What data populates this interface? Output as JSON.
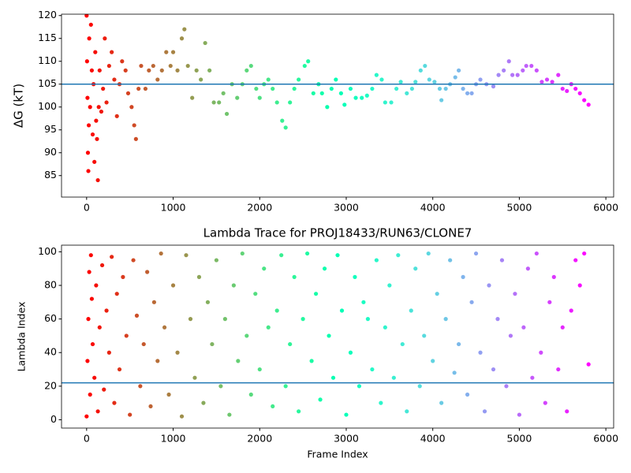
{
  "chart_data": [
    {
      "type": "scatter",
      "ylabel": "ΔG (kT)",
      "xlim": [
        -290,
        6090
      ],
      "ylim": [
        80.3,
        120.3
      ],
      "xticks": [
        0,
        1000,
        2000,
        3000,
        4000,
        5000,
        6000
      ],
      "yticks": [
        85,
        90,
        95,
        100,
        105,
        110,
        115,
        120
      ],
      "colormap": "rainbow",
      "colormap_reversed": true,
      "hline": 105,
      "hline_color": "#1f77b4",
      "x": [
        0,
        5,
        10,
        15,
        20,
        25,
        30,
        40,
        50,
        60,
        70,
        80,
        90,
        100,
        110,
        120,
        130,
        140,
        150,
        170,
        190,
        210,
        230,
        260,
        290,
        320,
        350,
        380,
        410,
        450,
        480,
        520,
        550,
        570,
        600,
        630,
        680,
        720,
        770,
        820,
        870,
        920,
        970,
        1000,
        1050,
        1100,
        1130,
        1170,
        1220,
        1270,
        1320,
        1370,
        1420,
        1470,
        1530,
        1580,
        1620,
        1680,
        1740,
        1800,
        1850,
        1900,
        1960,
        2000,
        2050,
        2100,
        2150,
        2200,
        2260,
        2300,
        2350,
        2400,
        2450,
        2520,
        2560,
        2620,
        2680,
        2720,
        2780,
        2830,
        2880,
        2940,
        2980,
        3050,
        3110,
        3180,
        3240,
        3300,
        3350,
        3410,
        3450,
        3520,
        3580,
        3630,
        3700,
        3760,
        3800,
        3860,
        3910,
        3960,
        4020,
        4080,
        4100,
        4150,
        4200,
        4260,
        4300,
        4350,
        4400,
        4450,
        4500,
        4550,
        4620,
        4700,
        4760,
        4820,
        4880,
        4920,
        4980,
        5040,
        5080,
        5140,
        5200,
        5260,
        5320,
        5380,
        5450,
        5500,
        5550,
        5600,
        5650,
        5700,
        5750,
        5800
      ],
      "values": [
        120,
        110,
        102,
        90,
        86,
        96,
        115,
        100,
        118,
        108,
        94,
        105,
        88,
        112,
        97,
        93,
        84,
        100,
        108,
        99,
        104,
        115,
        101,
        109,
        112,
        106,
        98,
        105,
        110,
        108,
        103,
        100,
        96,
        93,
        104,
        109,
        104,
        108,
        109,
        106,
        108,
        112,
        109,
        112,
        108,
        115,
        117,
        109,
        102,
        108,
        106,
        114,
        108,
        101,
        101,
        103,
        98.5,
        105,
        102,
        105,
        108,
        109,
        104,
        102,
        105,
        106,
        104,
        101,
        97,
        95.5,
        101,
        104,
        106,
        109,
        110,
        103,
        105,
        103,
        100,
        104,
        106,
        103,
        100.5,
        104,
        102,
        102,
        102.5,
        104,
        107,
        106,
        101,
        101,
        104,
        105.5,
        103,
        104,
        105.5,
        108,
        109,
        106,
        105.5,
        104,
        101.5,
        104,
        105,
        106.5,
        108,
        104,
        103,
        103,
        105,
        106,
        105,
        104.5,
        107,
        108,
        110,
        107,
        107,
        108,
        109,
        109,
        108,
        105.5,
        106,
        105.5,
        107,
        104,
        103.5,
        105,
        104,
        103,
        101.5,
        100.5
      ]
    },
    {
      "type": "scatter",
      "title": "Lambda Trace for PROJ18433/RUN63/CLONE7",
      "xlabel": "Frame Index",
      "ylabel": "Lambda Index",
      "xlim": [
        -290,
        6090
      ],
      "ylim": [
        -4.95,
        103.95
      ],
      "xticks": [
        0,
        1000,
        2000,
        3000,
        4000,
        5000,
        6000
      ],
      "yticks": [
        0,
        20,
        40,
        60,
        80,
        100
      ],
      "colormap": "rainbow",
      "colormap_reversed": true,
      "hline": 22,
      "hline_color": "#1f77b4",
      "x": [
        0,
        10,
        20,
        30,
        40,
        50,
        60,
        70,
        90,
        110,
        130,
        150,
        180,
        200,
        230,
        260,
        290,
        320,
        350,
        380,
        420,
        460,
        500,
        540,
        580,
        620,
        660,
        700,
        740,
        780,
        820,
        860,
        900,
        950,
        1000,
        1050,
        1100,
        1150,
        1200,
        1250,
        1300,
        1350,
        1400,
        1450,
        1500,
        1550,
        1600,
        1650,
        1700,
        1750,
        1800,
        1850,
        1900,
        1950,
        2000,
        2050,
        2100,
        2150,
        2200,
        2250,
        2300,
        2350,
        2400,
        2450,
        2500,
        2550,
        2600,
        2650,
        2700,
        2750,
        2800,
        2850,
        2900,
        2950,
        3000,
        3050,
        3100,
        3150,
        3200,
        3250,
        3300,
        3350,
        3400,
        3450,
        3500,
        3550,
        3600,
        3650,
        3700,
        3750,
        3800,
        3850,
        3900,
        3950,
        4000,
        4050,
        4100,
        4150,
        4200,
        4250,
        4300,
        4350,
        4400,
        4450,
        4500,
        4550,
        4600,
        4650,
        4700,
        4750,
        4800,
        4850,
        4900,
        4950,
        5000,
        5050,
        5100,
        5150,
        5200,
        5250,
        5300,
        5350,
        5400,
        5450,
        5500,
        5550,
        5600,
        5650,
        5700,
        5750,
        5800
      ],
      "values": [
        2,
        35,
        60,
        88,
        15,
        98,
        72,
        45,
        25,
        80,
        5,
        55,
        92,
        18,
        65,
        40,
        97,
        10,
        75,
        30,
        85,
        50,
        3,
        95,
        62,
        20,
        45,
        88,
        8,
        70,
        35,
        99,
        55,
        15,
        80,
        40,
        2,
        98,
        60,
        25,
        85,
        10,
        70,
        45,
        95,
        20,
        60,
        3,
        80,
        35,
        99,
        50,
        15,
        75,
        30,
        90,
        55,
        8,
        65,
        98,
        20,
        45,
        85,
        5,
        60,
        99,
        35,
        75,
        12,
        90,
        50,
        25,
        98,
        65,
        3,
        40,
        85,
        20,
        70,
        60,
        30,
        95,
        10,
        55,
        80,
        25,
        98,
        45,
        5,
        65,
        90,
        20,
        50,
        99,
        35,
        75,
        10,
        60,
        95,
        28,
        45,
        85,
        15,
        70,
        99,
        40,
        5,
        80,
        30,
        60,
        95,
        20,
        50,
        75,
        3,
        55,
        90,
        25,
        99,
        40,
        10,
        70,
        85,
        30,
        55,
        5,
        65,
        95,
        80,
        99,
        33
      ]
    }
  ]
}
